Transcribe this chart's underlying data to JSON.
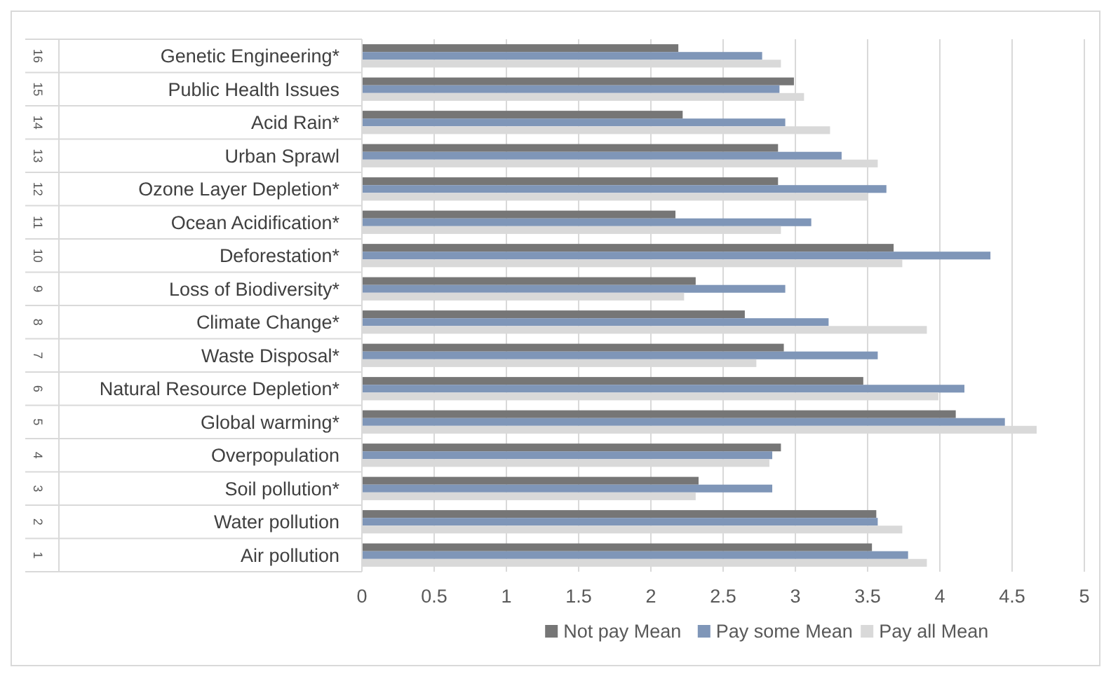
{
  "chart_data": {
    "type": "bar",
    "orientation": "horizontal",
    "categories": [
      "Genetic Engineering*",
      "Public Health Issues",
      "Acid Rain*",
      "Urban Sprawl",
      "Ozone Layer Depletion*",
      "Ocean Acidification*",
      "Deforestation*",
      "Loss of Biodiversity*",
      "Climate Change*",
      "Waste Disposal*",
      "Natural Resource Depletion*",
      "Global warming*",
      "Overpopulation",
      "Soil pollution*",
      "Water pollution",
      "Air pollution"
    ],
    "series": [
      {
        "name": "Not pay Mean",
        "color": "#767676",
        "values": [
          2.19,
          2.99,
          2.22,
          2.88,
          2.88,
          2.17,
          3.68,
          2.31,
          2.65,
          2.92,
          3.47,
          4.11,
          2.9,
          2.33,
          3.56,
          3.53
        ]
      },
      {
        "name": "Pay some Mean",
        "color": "#7f96b8",
        "values": [
          2.77,
          2.89,
          2.93,
          3.32,
          3.63,
          3.11,
          4.35,
          2.93,
          3.23,
          3.57,
          4.17,
          4.45,
          2.84,
          2.84,
          3.57,
          3.78
        ]
      },
      {
        "name": "Pay all Mean",
        "color": "#d9d9d9",
        "values": [
          2.9,
          3.06,
          3.24,
          3.57,
          3.5,
          2.9,
          3.74,
          2.23,
          3.91,
          2.73,
          3.99,
          4.67,
          2.82,
          2.31,
          3.74,
          3.91
        ]
      }
    ],
    "xlim": [
      0,
      5
    ],
    "xticks": [
      0,
      0.5,
      1,
      1.5,
      2,
      2.5,
      3,
      3.5,
      4,
      4.5,
      5
    ],
    "grid": "x",
    "legend": "bottom",
    "annotations": [
      "16",
      "15",
      "14",
      "13",
      "12",
      "11",
      "10",
      "9",
      "8",
      "7",
      "6",
      "5",
      "4",
      "3",
      "2",
      "1"
    ]
  }
}
